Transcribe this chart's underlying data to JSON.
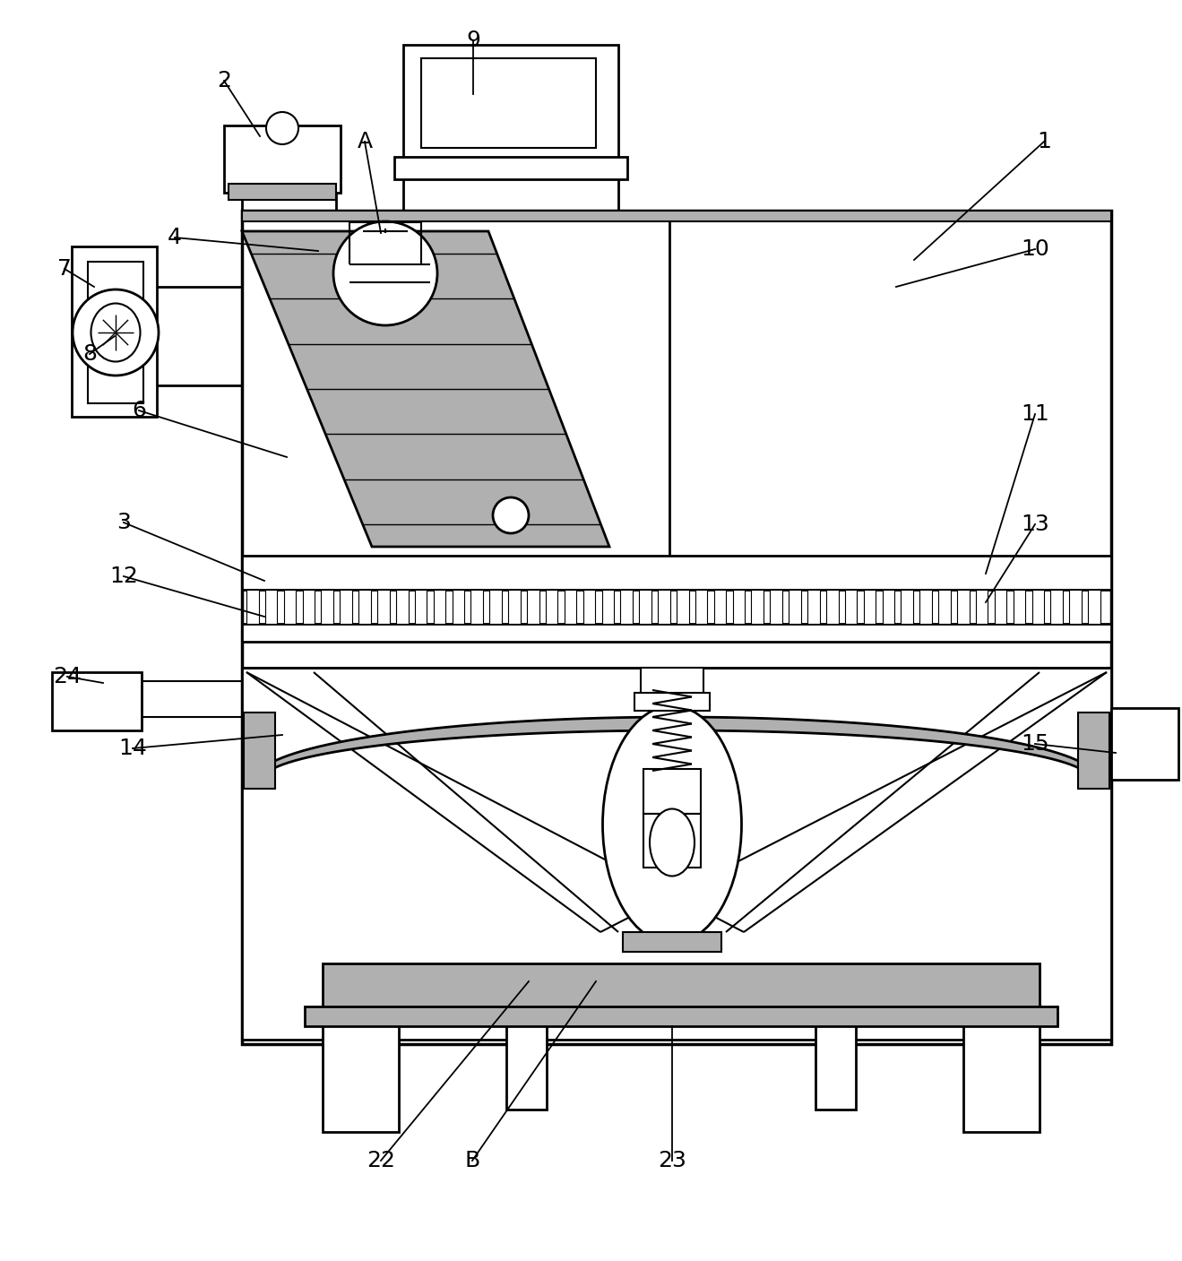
{
  "bg_color": "#ffffff",
  "line_color": "#000000",
  "gray_fill": "#b0b0b0",
  "light_gray": "#cccccc",
  "figsize": [
    13.19,
    14.07
  ],
  "dpi": 100
}
